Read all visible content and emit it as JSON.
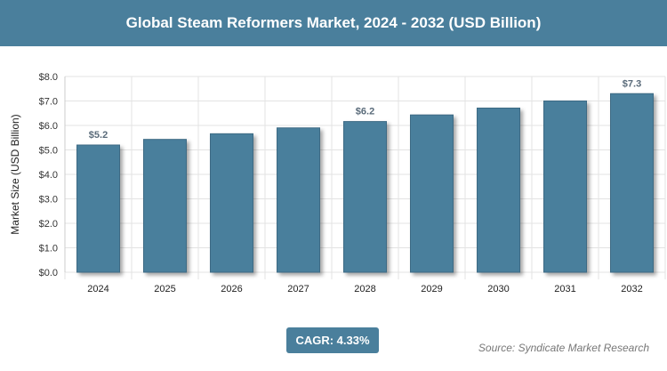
{
  "chart_data": {
    "type": "bar",
    "title": "Global Steam Reformers Market, 2024 - 2032 (USD Billion)",
    "xlabel": "",
    "ylabel": "Market Size (USD Billion)",
    "categories": [
      "2024",
      "2025",
      "2026",
      "2027",
      "2028",
      "2029",
      "2030",
      "2031",
      "2032"
    ],
    "values": [
      5.2,
      5.43,
      5.66,
      5.9,
      6.16,
      6.43,
      6.71,
      7.0,
      7.3
    ],
    "data_labels": {
      "2024": "$5.2",
      "2028": "$6.2",
      "2032": "$7.3"
    },
    "ylim": [
      0,
      8
    ],
    "yticks": [
      "$0.0",
      "$1.0",
      "$2.0",
      "$3.0",
      "$4.0",
      "$5.0",
      "$6.0",
      "$7.0",
      "$8.0"
    ],
    "grid": true,
    "bar_color": "#4a7f9c"
  },
  "cagr_label": "CAGR: 4.33%",
  "source": "Source: Syndicate Market Research"
}
